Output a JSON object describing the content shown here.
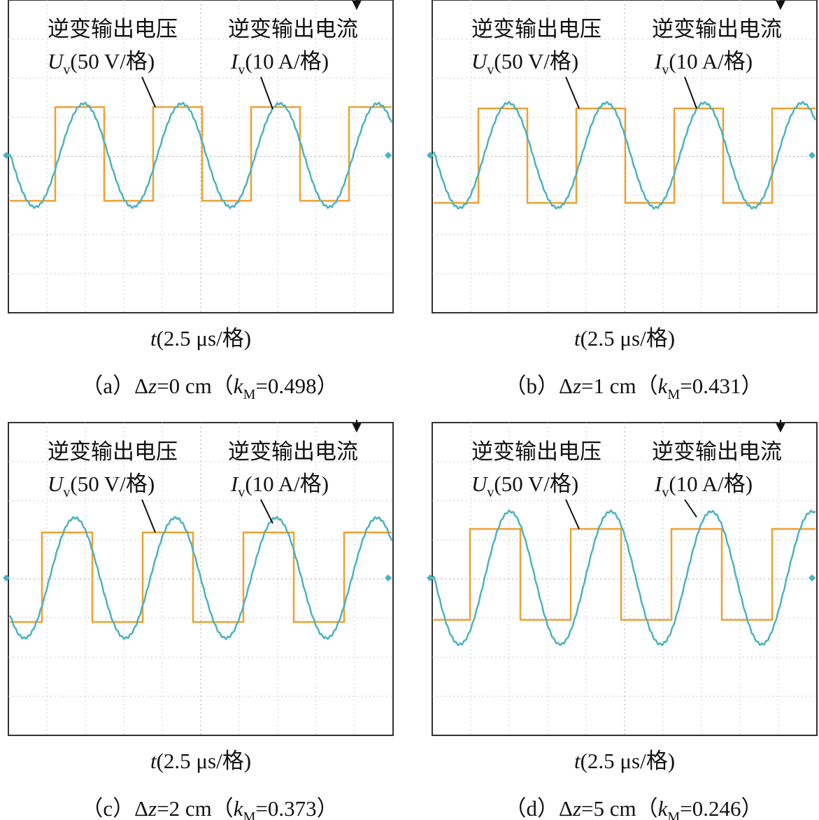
{
  "panels": [
    {
      "voltage_title": "逆变输出电压",
      "current_title": "逆变输出电流",
      "voltage_symbol": "U",
      "voltage_subscript": "v",
      "voltage_scale": "(50 V/格)",
      "current_symbol": "I",
      "current_subscript": "v",
      "current_scale": "(10 A/格)",
      "time_symbol": "t",
      "time_scale": "(2.5 μs/格)",
      "caption": {
        "label": "（a）",
        "delta": "Δ",
        "var": "z",
        "eq": "=0 cm（",
        "k": "k",
        "k_sub": "M",
        "k_val": "=0.498）"
      }
    },
    {
      "voltage_title": "逆变输出电压",
      "current_title": "逆变输出电流",
      "voltage_symbol": "U",
      "voltage_subscript": "v",
      "voltage_scale": "(50 V/格)",
      "current_symbol": "I",
      "current_subscript": "v",
      "current_scale": "(10 A/格)",
      "time_symbol": "t",
      "time_scale": "(2.5 μs/格)",
      "caption": {
        "label": "（b）",
        "delta": "Δ",
        "var": "z",
        "eq": "=1 cm（",
        "k": "k",
        "k_sub": "M",
        "k_val": "=0.431）"
      }
    },
    {
      "voltage_title": "逆变输出电压",
      "current_title": "逆变输出电流",
      "voltage_symbol": "U",
      "voltage_subscript": "v",
      "voltage_scale": "(50 V/格)",
      "current_symbol": "I",
      "current_subscript": "v",
      "current_scale": "(10 A/格)",
      "time_symbol": "t",
      "time_scale": "(2.5 μs/格)",
      "caption": {
        "label": "（c）",
        "delta": "Δ",
        "var": "z",
        "eq": "=2 cm（",
        "k": "k",
        "k_sub": "M",
        "k_val": "=0.373）"
      }
    },
    {
      "voltage_title": "逆变输出电压",
      "current_title": "逆变输出电流",
      "voltage_symbol": "U",
      "voltage_subscript": "v",
      "voltage_scale": "(50 V/格)",
      "current_symbol": "I",
      "current_subscript": "v",
      "current_scale": "(10 A/格)",
      "time_symbol": "t",
      "time_scale": "(2.5 μs/格)",
      "caption": {
        "label": "（d）",
        "delta": "Δ",
        "var": "z",
        "eq": "=5 cm（",
        "k": "k",
        "k_sub": "M",
        "k_val": "=0.246）"
      }
    }
  ]
}
